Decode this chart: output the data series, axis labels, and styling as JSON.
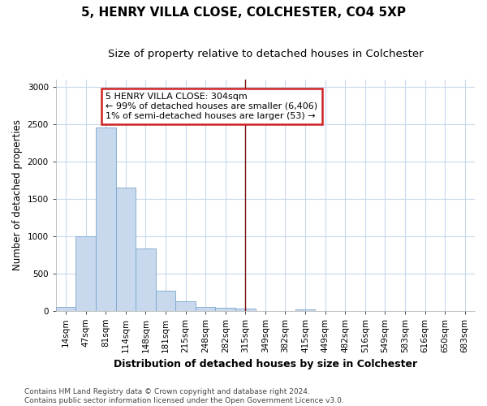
{
  "title": "5, HENRY VILLA CLOSE, COLCHESTER, CO4 5XP",
  "subtitle": "Size of property relative to detached houses in Colchester",
  "xlabel": "Distribution of detached houses by size in Colchester",
  "ylabel": "Number of detached properties",
  "bar_labels": [
    "14sqm",
    "47sqm",
    "81sqm",
    "114sqm",
    "148sqm",
    "181sqm",
    "215sqm",
    "248sqm",
    "282sqm",
    "315sqm",
    "349sqm",
    "382sqm",
    "415sqm",
    "449sqm",
    "482sqm",
    "516sqm",
    "549sqm",
    "583sqm",
    "616sqm",
    "650sqm",
    "683sqm"
  ],
  "bar_values": [
    50,
    1000,
    2460,
    1650,
    830,
    270,
    130,
    50,
    35,
    30,
    0,
    0,
    20,
    0,
    0,
    0,
    0,
    0,
    0,
    0,
    0
  ],
  "bar_color": "#c8d8ed",
  "bar_edge_color": "#7aa8cc",
  "vline_x": 9,
  "vline_color": "#7b1010",
  "ylim": [
    0,
    3100
  ],
  "yticks": [
    0,
    500,
    1000,
    1500,
    2000,
    2500,
    3000
  ],
  "annotation_text": "5 HENRY VILLA CLOSE: 304sqm\n← 99% of detached houses are smaller (6,406)\n1% of semi-detached houses are larger (53) →",
  "annotation_box_color": "#ffffff",
  "annotation_box_edge_color": "#cc2222",
  "footer": "Contains HM Land Registry data © Crown copyright and database right 2024.\nContains public sector information licensed under the Open Government Licence v3.0.",
  "bg_color": "#ffffff",
  "plot_bg_color": "#ffffff",
  "grid_color": "#c8d8ed",
  "title_fontsize": 11,
  "subtitle_fontsize": 9.5,
  "xlabel_fontsize": 9,
  "ylabel_fontsize": 8.5,
  "tick_fontsize": 7.5,
  "footer_fontsize": 6.5,
  "annot_fontsize": 8
}
